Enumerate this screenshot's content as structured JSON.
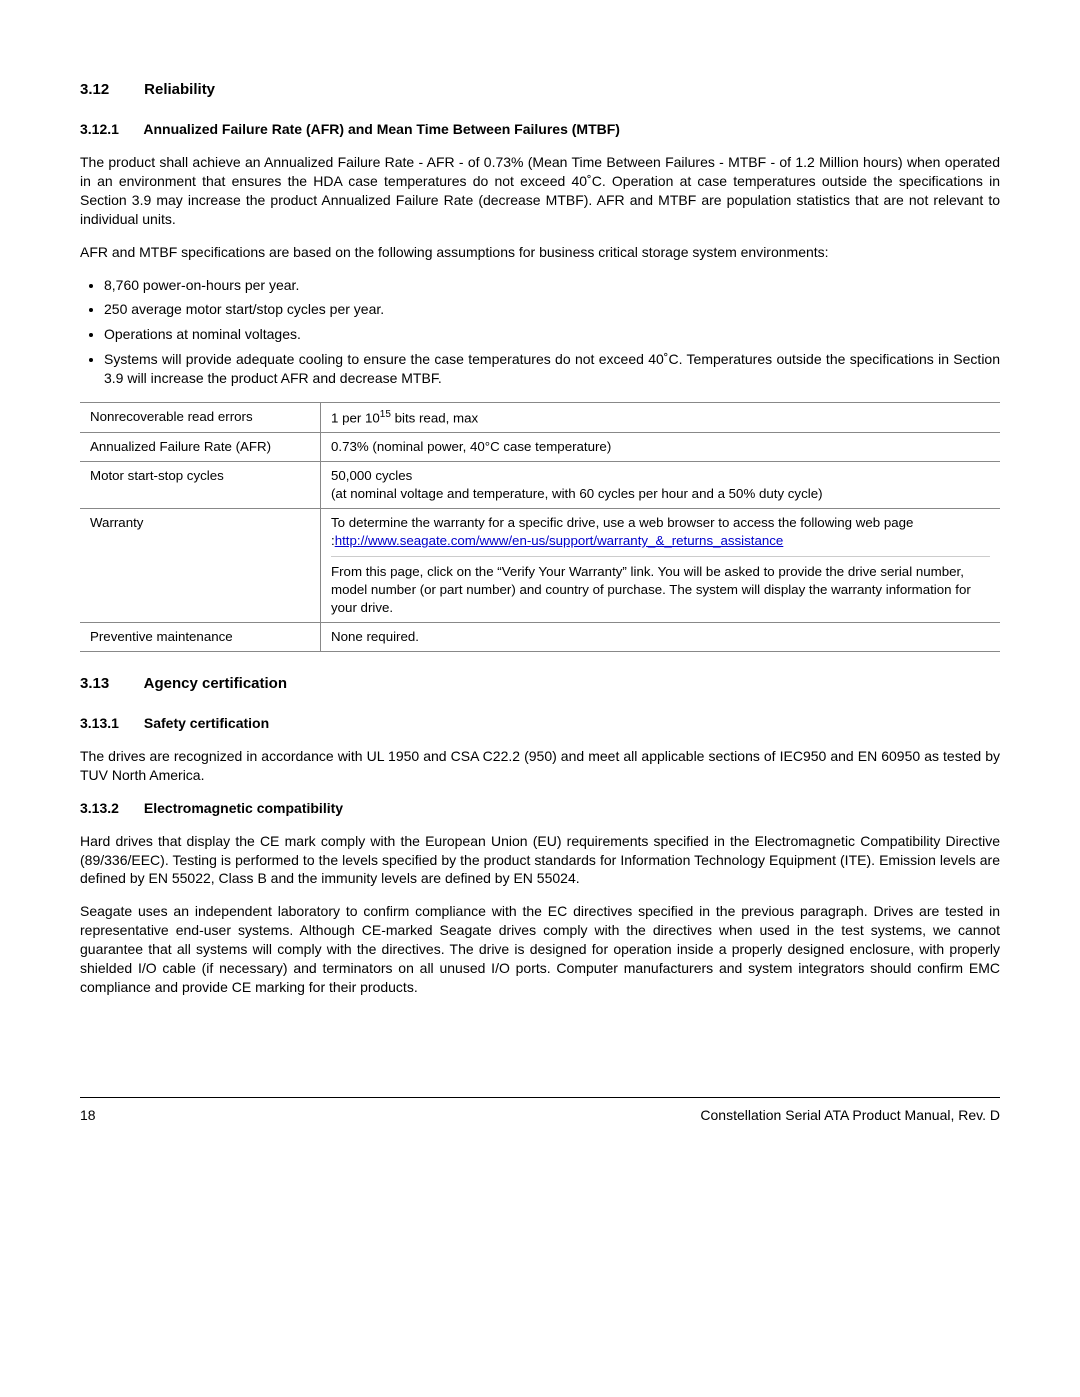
{
  "s312": {
    "num": "3.12",
    "title": "Reliability",
    "s1": {
      "num": "3.12.1",
      "title": "Annualized Failure Rate (AFR) and Mean Time Between Failures (MTBF)",
      "p1a": "The product shall achieve an Annualized Failure Rate - AFR - of 0.73% (Mean Time Between Failures - MTBF - of 1.2 Million hours) when operated in an environment that ensures the HDA case temperatures do not exceed 40",
      "p1b": "C. Operation at case temperatures outside the specifications in Section 3.9 may increase the product Annualized Failure Rate (decrease MTBF). AFR and MTBF are population statistics that are not relevant to individual units.",
      "p2": "AFR and MTBF specifications are based on the following assumptions for business critical storage system environments:",
      "b1": "8,760 power-on-hours per year.",
      "b2": "250 average motor start/stop cycles per year.",
      "b3": "Operations at nominal voltages.",
      "b4a": "Systems will provide adequate cooling to ensure the case temperatures do not exceed 40",
      "b4b": "C. Temperatures outside the specifications in Section 3.9 will increase the product AFR and decrease MTBF."
    },
    "table": {
      "r1": {
        "label": "Nonrecoverable read errors",
        "val_a": "1 per 10",
        "val_exp": "15",
        "val_b": " bits read, max"
      },
      "r2": {
        "label": "Annualized Failure Rate (AFR)",
        "val": "0.73% (nominal power, 40°C case temperature)"
      },
      "r3": {
        "label": "Motor start-stop cycles",
        "val_l1": "50,000 cycles",
        "val_l2": "(at nominal voltage and temperature, with 60 cycles per hour and a 50% duty cycle)"
      },
      "r4": {
        "label": "Warranty",
        "p1": "To determine the warranty for a specific drive, use a web browser to access the following web page",
        "link_prefix": ":",
        "link": "http://www.seagate.com/www/en-us/support/warranty_&_returns_assistance",
        "p2": "From this page, click on the “Verify Your Warranty” link. You will be asked to provide the drive serial number, model number (or part number) and country of purchase. The system will display the warranty information for your drive."
      },
      "r5": {
        "label": "Preventive maintenance",
        "val": "None required."
      }
    }
  },
  "s313": {
    "num": "3.13",
    "title": "Agency certification",
    "s1": {
      "num": "3.13.1",
      "title": "Safety certification",
      "p1": "The drives are recognized in accordance with UL 1950 and CSA C22.2 (950) and meet all applicable sections of IEC950 and EN 60950 as tested by TUV North America."
    },
    "s2": {
      "num": "3.13.2",
      "title": "Electromagnetic compatibility",
      "p1": "Hard drives that display the CE mark comply with the European Union (EU) requirements specified in the Electromagnetic Compatibility Directive (89/336/EEC). Testing is performed to the levels specified by the product standards for Information Technology Equipment (ITE). Emission levels are defined by EN 55022, Class B and the immunity levels are defined by EN 55024.",
      "p2": "Seagate uses an independent laboratory to confirm compliance with the EC directives specified in the previous paragraph. Drives are tested in representative end-user systems. Although CE-marked Seagate drives comply with the directives when used in the test systems, we cannot guarantee that all systems will comply with the directives. The drive is designed for operation inside a properly designed enclosure, with properly shielded I/O cable (if necessary) and terminators on all unused I/O ports. Computer manufacturers and system integrators should confirm EMC compliance and provide CE marking for their products."
    }
  },
  "footer": {
    "page": "18",
    "title": "Constellation Serial ATA Product Manual, Rev. D"
  }
}
